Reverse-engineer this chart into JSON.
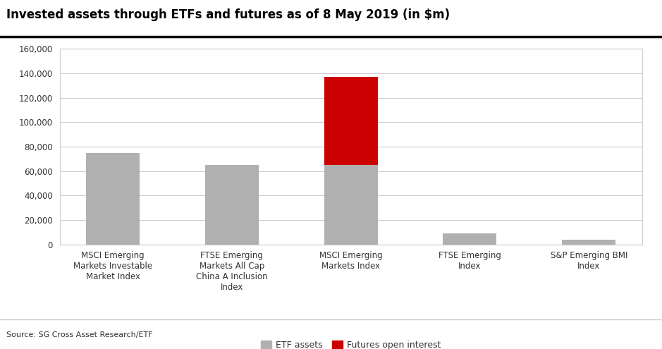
{
  "title": "Invested assets through ETFs and futures as of 8 May 2019 (in $m)",
  "source": "Source: SG Cross Asset Research/ETF",
  "categories": [
    "MSCI Emerging\nMarkets Investable\nMarket Index",
    "FTSE Emerging\nMarkets All Cap\nChina A Inclusion\nIndex",
    "MSCI Emerging\nMarkets Index",
    "FTSE Emerging\nIndex",
    "S&P Emerging BMI\nIndex"
  ],
  "etf_values": [
    75000,
    65000,
    65000,
    9000,
    3500
  ],
  "futures_values": [
    0,
    0,
    72000,
    0,
    0
  ],
  "etf_color": "#b0b0b0",
  "futures_color": "#cc0000",
  "ylim": [
    0,
    160000
  ],
  "yticks": [
    0,
    20000,
    40000,
    60000,
    80000,
    100000,
    120000,
    140000,
    160000
  ],
  "background_color": "#ffffff",
  "plot_bg_color": "#ffffff",
  "grid_color": "#cccccc",
  "title_fontsize": 12,
  "tick_fontsize": 8.5,
  "legend_fontsize": 9,
  "source_fontsize": 8,
  "border_color": "#cccccc"
}
